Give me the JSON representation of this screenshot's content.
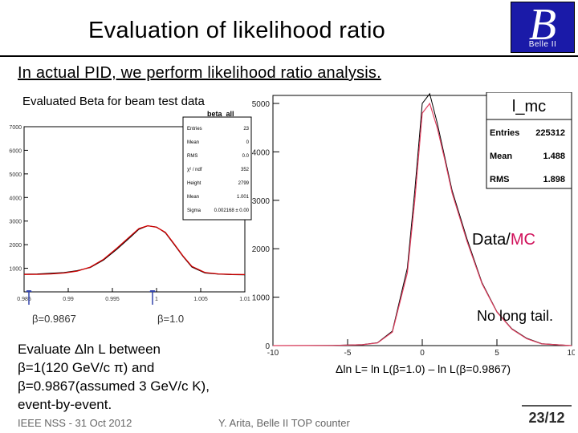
{
  "slide": {
    "title": "Evaluation of likelihood ratio",
    "subtitle": "In actual PID, we perform likelihood ratio analysis.",
    "beam_test_label": "Evaluated Beta for beam test data",
    "beta_low_label": "β=0.9867",
    "beta_high_label": "β=1.0",
    "text_lines": [
      "Evaluate Δln L between",
      " β=1(120 GeV/c π) and",
      " β=0.9867(assumed 3 GeV/c K),",
      "event-by-event."
    ],
    "data_label": "Data/",
    "mc_label": "MC",
    "no_tail_label": "No long tail.",
    "xaxis_label": "Δln L= ln L(β=1.0) – ln L(β=0.9867)",
    "footer_left": "IEEE NSS - 31 Oct 2012",
    "footer_center": "Y. Arita, Belle II TOP counter",
    "page": "23/12",
    "logo_letter": "B",
    "logo_text": "Belle II",
    "colors": {
      "logo_bg": "#1a1aa8",
      "mc": "#d0105a",
      "data": "#000000",
      "fit": "#d00000"
    }
  },
  "chart_data": [
    {
      "type": "line",
      "title": "beta_all",
      "xlim": [
        0.985,
        1.01
      ],
      "ylim": [
        0,
        7000
      ],
      "x_ticks": [
        "0.985",
        "0.99",
        "0.995",
        "1",
        "1.005",
        "1.01"
      ],
      "y_ticks": [
        "1000",
        "2000",
        "3000",
        "4000",
        "5000",
        "6000",
        "7000"
      ],
      "stats": [
        {
          "k": "Entries",
          "v": "23"
        },
        {
          "k": "Mean",
          "v": "0"
        },
        {
          "k": "RMS",
          "v": "0.0"
        },
        {
          "k": "χ² / ndf",
          "v": "352"
        },
        {
          "k": "Height",
          "v": "2799"
        },
        {
          "k": "Mean",
          "v": "1.001"
        },
        {
          "k": "Sigma",
          "v": "0.002168 ± 0.00"
        }
      ],
      "series": [
        {
          "type": "histogram",
          "x": [
            0.985,
            0.9865,
            0.988,
            0.9895,
            0.991,
            0.9925,
            0.994,
            0.9955,
            0.997,
            0.998,
            0.999,
            1.0,
            1.001,
            1.002,
            1.003,
            1.004,
            1.0055,
            1.007,
            1.0085,
            1.01
          ],
          "y": [
            750,
            760,
            790,
            820,
            900,
            1030,
            1350,
            1800,
            2300,
            2650,
            2800,
            2750,
            2500,
            2000,
            1500,
            1050,
            800,
            750,
            730,
            720
          ]
        },
        {
          "type": "fit",
          "x": [
            0.985,
            0.9865,
            0.988,
            0.9895,
            0.991,
            0.9925,
            0.994,
            0.9955,
            0.997,
            0.998,
            0.999,
            1.0,
            1.001,
            1.002,
            1.003,
            1.004,
            1.0055,
            1.007,
            1.0085,
            1.01
          ],
          "y": [
            740,
            745,
            760,
            800,
            880,
            1050,
            1380,
            1850,
            2350,
            2680,
            2800,
            2740,
            2520,
            2030,
            1520,
            1080,
            820,
            760,
            740,
            735
          ]
        }
      ]
    },
    {
      "type": "line",
      "title": "l_mc",
      "xlim": [
        -10,
        10
      ],
      "ylim": [
        0,
        5000
      ],
      "x_ticks": [
        "-10",
        "-5",
        "0",
        "5",
        "10"
      ],
      "y_ticks": [
        "0",
        "1000",
        "2000",
        "3000",
        "4000",
        "5000"
      ],
      "stats": [
        {
          "k": "Entries",
          "v": "225312"
        },
        {
          "k": "Mean",
          "v": "1.488"
        },
        {
          "k": "RMS",
          "v": "1.898"
        }
      ],
      "series": [
        {
          "type": "data",
          "x": [
            -10,
            -6,
            -4,
            -3,
            -2,
            -1,
            -0.5,
            0,
            0.5,
            1,
            1.5,
            2,
            3,
            4,
            5,
            6,
            7,
            8,
            10
          ],
          "y": [
            0,
            5,
            20,
            60,
            300,
            1600,
            3200,
            5000,
            5200,
            4600,
            3900,
            3200,
            2200,
            1300,
            700,
            350,
            150,
            40,
            0
          ]
        },
        {
          "type": "mc",
          "x": [
            -10,
            -6,
            -4,
            -3,
            -2,
            -1,
            -0.5,
            0,
            0.5,
            1,
            1.5,
            2,
            3,
            4,
            5,
            6,
            7,
            8,
            10
          ],
          "y": [
            0,
            4,
            18,
            55,
            280,
            1500,
            3000,
            4800,
            5000,
            4500,
            3850,
            3150,
            2150,
            1280,
            690,
            340,
            140,
            35,
            0
          ]
        }
      ]
    }
  ]
}
